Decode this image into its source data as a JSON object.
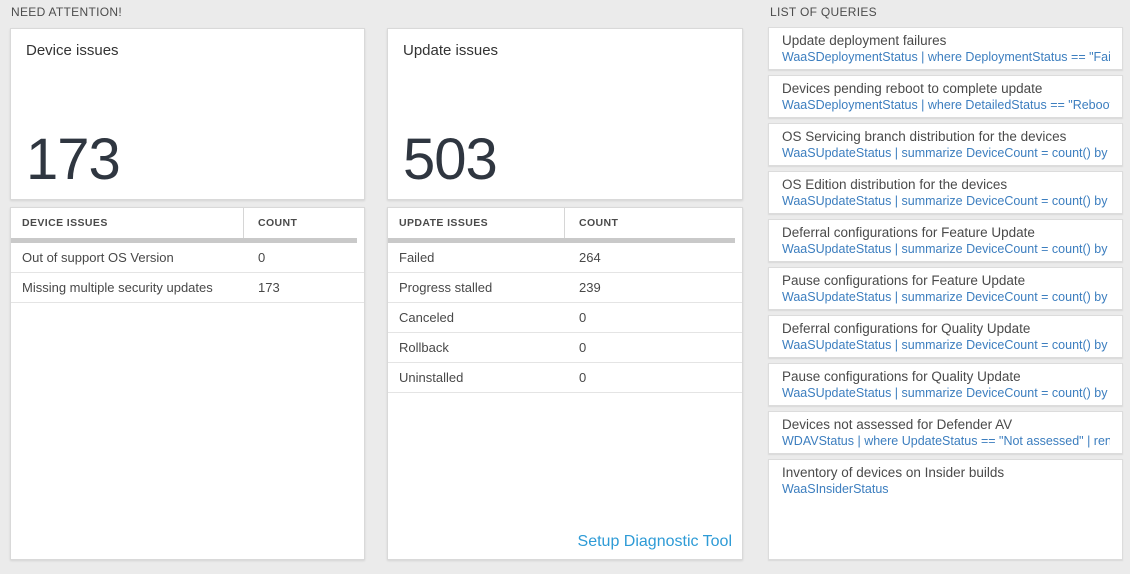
{
  "colors": {
    "page_background": "#ebebeb",
    "query_text_blue": "#3c7ebf",
    "setup_link_blue": "#2e9bd6",
    "big_number": "#2f3640"
  },
  "need_attention": {
    "header": "NEED ATTENTION!",
    "device_tile": {
      "title": "Device issues",
      "value": "173"
    },
    "device_table": {
      "col_issue": "DEVICE ISSUES",
      "col_count": "COUNT",
      "rows": [
        {
          "label": "Out of support OS Version",
          "count": "0"
        },
        {
          "label": "Missing multiple security updates",
          "count": "173"
        }
      ]
    },
    "update_tile": {
      "title": "Update issues",
      "value": "503"
    },
    "update_table": {
      "col_issue": "UPDATE ISSUES",
      "col_count": "COUNT",
      "rows": [
        {
          "label": "Failed",
          "count": "264"
        },
        {
          "label": "Progress stalled",
          "count": "239"
        },
        {
          "label": "Canceled",
          "count": "0"
        },
        {
          "label": "Rollback",
          "count": "0"
        },
        {
          "label": "Uninstalled",
          "count": "0"
        }
      ],
      "setup_link": "Setup Diagnostic Tool"
    }
  },
  "queries": {
    "header": "LIST OF QUERIES",
    "items": [
      {
        "title": "Update deployment failures",
        "query": "WaaSDeploymentStatus | where DeploymentStatus == \"Failed\" |..."
      },
      {
        "title": "Devices pending reboot to complete update",
        "query": "WaaSDeploymentStatus | where DetailedStatus == \"Reboot pend..."
      },
      {
        "title": "OS Servicing branch distribution for the devices",
        "query": "WaaSUpdateStatus | summarize DeviceCount = count() by OSSer..."
      },
      {
        "title": "OS Edition distribution for the devices",
        "query": "WaaSUpdateStatus | summarize DeviceCount = count() by OSEdit..."
      },
      {
        "title": "Deferral configurations for Feature Update",
        "query": "WaaSUpdateStatus | summarize DeviceCount = count() by Featur..."
      },
      {
        "title": "Pause configurations for Feature Update",
        "query": "WaaSUpdateStatus | summarize DeviceCount = count() by Featur..."
      },
      {
        "title": "Deferral configurations for Quality Update",
        "query": "WaaSUpdateStatus | summarize DeviceCount = count() by Qualit..."
      },
      {
        "title": "Pause configurations for Quality Update",
        "query": "WaaSUpdateStatus | summarize DeviceCount = count() by Qualit..."
      },
      {
        "title": "Devices not assessed for Defender AV",
        "query": "WDAVStatus | where UpdateStatus == \"Not assessed\" | render ta..."
      },
      {
        "title": "Inventory of devices on Insider builds",
        "query": "WaaSInsiderStatus"
      }
    ]
  }
}
